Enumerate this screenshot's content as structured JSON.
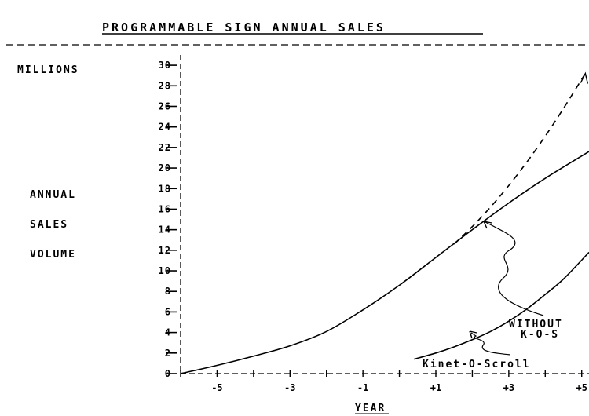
{
  "chart_data": {
    "type": "line",
    "title": "PROGRAMMABLE SIGN ANNUAL SALES",
    "ylabel_units": "MILLIONS",
    "ylabel_lines": [
      "ANNUAL",
      "SALES",
      "VOLUME"
    ],
    "xlabel": "YEAR",
    "xlim": [
      -6,
      5.2
    ],
    "ylim": [
      0,
      31
    ],
    "y_ticks": [
      0,
      2,
      4,
      6,
      8,
      10,
      12,
      14,
      16,
      18,
      20,
      22,
      24,
      26,
      28,
      30
    ],
    "y_tick_labels": [
      "0",
      "2",
      "4",
      "6",
      "8",
      "10",
      "12",
      "14",
      "16",
      "18",
      "20",
      "22",
      "24",
      "26",
      "28",
      "30"
    ],
    "x_ticks": [
      -5,
      -3,
      -1,
      1,
      3,
      5
    ],
    "x_tick_labels": [
      "-5",
      "-3",
      "-1",
      "+1",
      "+3",
      "+5"
    ],
    "grid": false,
    "series": [
      {
        "name": "WITHOUT K-O-S",
        "style": "solid",
        "x": [
          -6,
          -5,
          -4,
          -3,
          -2,
          -1,
          0,
          1,
          2,
          3,
          4,
          5.2
        ],
        "y": [
          0,
          0.8,
          1.7,
          2.7,
          4.1,
          6.2,
          8.6,
          11.3,
          14.0,
          16.6,
          19.0,
          21.6
        ]
      },
      {
        "name": "Kinet-O-Scroll",
        "style": "solid",
        "x": [
          0.4,
          1,
          1.5,
          2,
          2.5,
          3,
          3.5,
          4,
          4.5,
          5.2
        ],
        "y": [
          1.4,
          2.0,
          2.6,
          3.3,
          4.1,
          5.1,
          6.3,
          7.7,
          9.2,
          11.8
        ]
      },
      {
        "name": "",
        "style": "dashed",
        "x": [
          1.5,
          2,
          2.5,
          3,
          3.5,
          4,
          4.5,
          5.1
        ],
        "y": [
          12.6,
          14.3,
          16.2,
          18.3,
          20.6,
          23.1,
          25.8,
          29.2
        ]
      }
    ],
    "annotations": [
      "WITHOUT",
      "K-O-S",
      "Kinet-O-Scroll"
    ]
  }
}
